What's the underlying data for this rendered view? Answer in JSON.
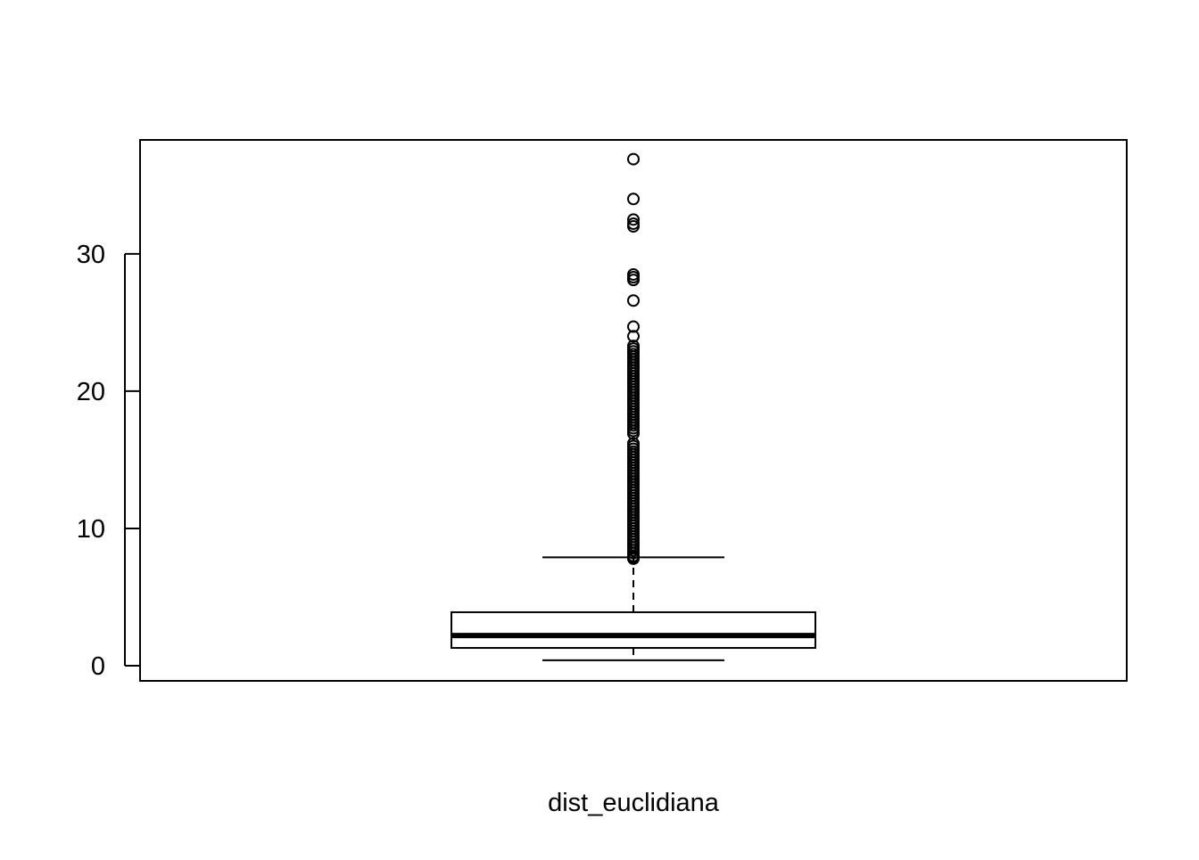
{
  "chart_data": {
    "type": "boxplot",
    "xlabel": "dist_euclidiana",
    "ylabel": "",
    "yticks": [
      0,
      10,
      20,
      30
    ],
    "ylim": [
      -1.1,
      38.3
    ],
    "grid": false,
    "series": [
      {
        "box": {
          "whisker_low": 0.4,
          "q1": 1.3,
          "median": 2.2,
          "q3": 3.9,
          "whisker_high": 7.9
        },
        "outliers": [
          36.9,
          34.0,
          32.5,
          32.2,
          32.0,
          28.5,
          28.3,
          28.1,
          26.6,
          24.7,
          24.0,
          23.3,
          23.1,
          22.9,
          22.7,
          22.5,
          22.3,
          22.1,
          21.9,
          21.7,
          21.5,
          21.3,
          21.1,
          20.9,
          20.7,
          20.5,
          20.3,
          20.1,
          19.9,
          19.7,
          19.5,
          19.3,
          19.1,
          18.9,
          18.7,
          18.5,
          18.3,
          18.1,
          17.9,
          17.7,
          17.5,
          17.3,
          17.1,
          16.9,
          16.2,
          16.0,
          15.8,
          15.6,
          15.4,
          15.2,
          15.0,
          14.8,
          14.6,
          14.4,
          14.2,
          14.0,
          13.8,
          13.6,
          13.4,
          13.2,
          13.0,
          12.8,
          12.6,
          12.4,
          12.2,
          12.0,
          11.8,
          11.6,
          11.4,
          11.2,
          11.0,
          10.8,
          10.6,
          10.4,
          10.2,
          10.0,
          9.8,
          9.6,
          9.4,
          9.2,
          9.0,
          8.8,
          8.6,
          8.4,
          8.2,
          8.0,
          7.9,
          7.8
        ]
      }
    ]
  }
}
